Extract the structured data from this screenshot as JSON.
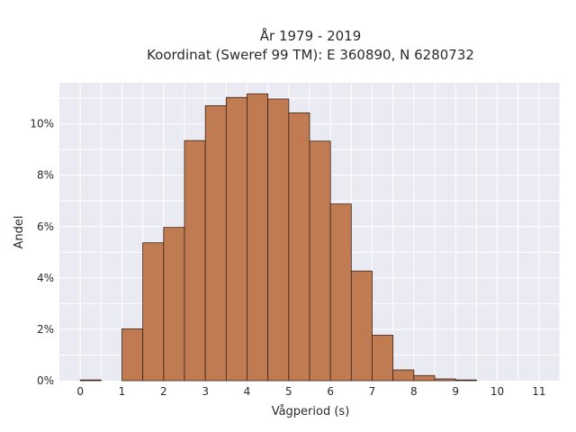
{
  "chart_data": {
    "type": "bar",
    "title_line1": "År 1979 - 2019",
    "title_line2": "Koordinat (Sweref 99 TM): E 360890, N 6280732",
    "xlabel": "Vågperiod (s)",
    "ylabel": "Andel",
    "x_ticks": [
      "0",
      "1",
      "2",
      "3",
      "4",
      "5",
      "6",
      "7",
      "8",
      "9",
      "10",
      "11"
    ],
    "y_ticks": [
      "0%",
      "2%",
      "4%",
      "6%",
      "8%",
      "10%"
    ],
    "xlim": [
      -0.5,
      11.5
    ],
    "ylim": [
      0,
      0.116
    ],
    "bin_width": 0.5,
    "bins": [
      {
        "x0": 0.0,
        "value": 0.0003
      },
      {
        "x0": 1.0,
        "value": 0.0202
      },
      {
        "x0": 1.5,
        "value": 0.0537
      },
      {
        "x0": 2.0,
        "value": 0.0597
      },
      {
        "x0": 2.5,
        "value": 0.0935
      },
      {
        "x0": 3.0,
        "value": 0.1071
      },
      {
        "x0": 3.5,
        "value": 0.1103
      },
      {
        "x0": 4.0,
        "value": 0.1117
      },
      {
        "x0": 4.5,
        "value": 0.1097
      },
      {
        "x0": 5.0,
        "value": 0.1043
      },
      {
        "x0": 5.5,
        "value": 0.0933
      },
      {
        "x0": 6.0,
        "value": 0.0688
      },
      {
        "x0": 6.5,
        "value": 0.0427
      },
      {
        "x0": 7.0,
        "value": 0.0177
      },
      {
        "x0": 7.5,
        "value": 0.0042
      },
      {
        "x0": 8.0,
        "value": 0.002
      },
      {
        "x0": 8.5,
        "value": 0.0007
      },
      {
        "x0": 9.0,
        "value": 0.0003
      }
    ],
    "grid": true,
    "bar_color": "#c07b53",
    "bar_edge_color": "#3a2418",
    "plot_background": "#eaeaf2"
  }
}
